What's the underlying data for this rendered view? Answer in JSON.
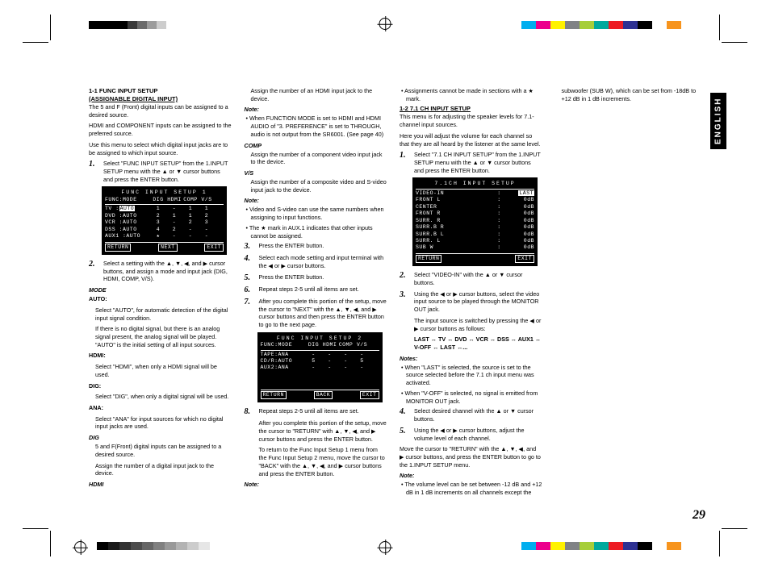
{
  "page_number": "29",
  "english_tab": "ENGLISH",
  "color_swatches": [
    "#00aeef",
    "#ec008c",
    "#fff200",
    "#808285",
    "#a6ce39",
    "#00a99d",
    "#ed1c24",
    "#2e3192",
    "#000000",
    "#ffffff",
    "#f7941d"
  ],
  "gray_swatches": [
    "#000000",
    "#1a1a1a",
    "#333333",
    "#4d4d4d",
    "#666666",
    "#808080",
    "#999999",
    "#b3b3b3",
    "#cccccc",
    "#e6e6e6",
    "#ffffff"
  ],
  "col1": {
    "title_num": "1-1  FUNC INPUT SETUP",
    "title_sub": "(ASSIGNABLE DIGITAL INPUT)",
    "intro1": "The 5 and F (Front) digital inputs can be assigned to a desired source.",
    "intro2": "HDMI and COMPONENT inputs can be assigned to the preferred source.",
    "intro3": "Use this menu to select which digital input jacks are to be assigned to which input source.",
    "step1": "Select \"FUNC INPUT SETUP\" from the 1.INPUT SETUP menu with the ▲ or ▼ cursor buttons and press the ENTER button.",
    "lcd1": {
      "title": "FUNC  INPUT  SETUP 1",
      "hdr": [
        "FUNC:MODE",
        "DIG",
        "HDMI",
        "COMP",
        "V/S"
      ],
      "rows": [
        [
          "TV   :",
          "AUTO",
          "1",
          "-",
          "1",
          "1"
        ],
        [
          "DVD  :",
          "AUTO",
          "2",
          "1",
          "1",
          "2"
        ],
        [
          "VCR  :",
          "AUTO",
          "3",
          "-",
          "2",
          "3"
        ],
        [
          "DSS  :",
          "AUTO",
          "4",
          "2",
          "-",
          "-"
        ],
        [
          "AUX1 :",
          "AUTO",
          "★",
          "-",
          "-",
          "-"
        ]
      ],
      "ftr": [
        "RETURN",
        "NEXT",
        "EXIT"
      ]
    },
    "step2": "Select a setting with the ▲, ▼, ◀, and ▶ cursor buttons, and assign a mode and input jack (DIG, HDMI, COMP, V/S).",
    "mode_h": "MODE",
    "auto_h": "AUTO:",
    "auto_t": "Select \"AUTO\", for automatic detection of the digital input signal condition.",
    "auto_t2": "If there is no digital signal, but there is an analog signal present,  the analog signal will be played. \"AUTO\" is the initial setting of all input sources.",
    "hdmi_h": "HDMI:",
    "hdmi_t": "Select \"HDMI\", when only a HDMI signal will be used.",
    "dig_h": "DIG:",
    "dig_t": "Select \"DIG\", when only a digital signal will be used.",
    "ana_h": "ANA:",
    "ana_t": "Select \"ANA\" for input sources for which no digital input jacks are used.",
    "dig2_h": "DIG",
    "dig2_t1": "5 and F(Front) digital inputs can be assigned to a desired source.",
    "dig2_t2": "Assign the number of a digital input jack to the device."
  },
  "col2": {
    "hdmi_h": "HDMI",
    "hdmi_t": "Assign the number of an HDMI input jack to the device.",
    "note1_h": "Note:",
    "note1_b": "When FUNCTION MODE is set to HDMI and HDMI AUDIO of \"3. PREFERENCE\" is set to THROUGH, audio is not output from the SR6001. (See page 40)",
    "comp_h": "COMP",
    "comp_t": "Assign the number of a component video input jack to the device.",
    "vs_h": "V/S",
    "vs_t": "Assign the number of a composite video and S-video input jack to the device.",
    "note2_h": "Note:",
    "note2_b1": "Video and S-video can use the same numbers when assigning to input functions.",
    "note2_b2": "The ★ mark in AUX.1 indicates that other inputs cannot be assigned.",
    "step3": "Press the ENTER button.",
    "step4": "Select each mode setting and input terminal with the ◀ or ▶ cursor buttons.",
    "step5": "Press the ENTER button.",
    "step6": "Repeat steps 2-5 until all items are set.",
    "step7": "After you complete this portion of the setup, move the cursor to \"NEXT\" with the ▲, ▼, ◀, and ▶ cursor buttons and then press the ENTER button to go to the next page.",
    "lcd2": {
      "title": "FUNC  INPUT  SETUP 2",
      "hdr": [
        "FUNC:MODE",
        "DIG",
        "HDMI",
        "COMP",
        "V/S"
      ],
      "rows": [
        [
          "TAPE:",
          "ANA",
          "-",
          "-",
          "-",
          "-"
        ],
        [
          "CD/R:",
          "AUTO",
          "5",
          "-",
          "-",
          "5"
        ],
        [
          "AUX2:",
          "ANA",
          "-",
          "-",
          "-",
          "-"
        ]
      ],
      "ftr": [
        "RETURN",
        "BACK",
        "EXIT"
      ]
    },
    "step8": "Repeat steps 2-5 until all items are set.",
    "step8_t2": "After you complete this portion of the setup, move the cursor to \"RETURN\" with ▲, ▼, ◀, and ▶ cursor buttons and press the ENTER button.",
    "step8_t3": "To return to the Func Input Setup 1 menu from the Func Input Setup 2 menu, move the cursor to \"BACK\" with the ▲, ▼, ◀, and ▶ cursor buttons and press the ENTER button.",
    "note3_h": "Note:",
    "note3_b": "Assignments cannot be made in sections with a ★ mark."
  },
  "col3": {
    "title": "1-2  7.1 CH INPUT SETUP",
    "intro1": "This menu is for adjusting the speaker levels for 7.1-channel input sources.",
    "intro2": "Here you will adjust the volume for each channel so that they are all heard by the listener at the same level.",
    "step1": "Select \"7.1 CH INPUT SETUP\" from the 1.INPUT SETUP menu with the ▲ or ▼ cursor buttons and press the ENTER button.",
    "lcd": {
      "title": "7.1CH  INPUT  SETUP",
      "rows": [
        [
          "VIDEO-IN",
          ":",
          "LAST"
        ],
        [
          "FRONT  L",
          ":",
          "0dB"
        ],
        [
          "CENTER",
          ":",
          "0dB"
        ],
        [
          "FRONT  R",
          ":",
          "0dB"
        ],
        [
          "SURR. R",
          ":",
          "0dB"
        ],
        [
          "SURR.B R",
          ":",
          "0dB"
        ],
        [
          "SURR.B L",
          ":",
          "0dB"
        ],
        [
          "SURR. L",
          ":",
          "0dB"
        ],
        [
          "SUB W",
          ":",
          "0dB"
        ]
      ],
      "ftr": [
        "RETURN",
        "",
        "EXIT"
      ]
    },
    "step2": "Select \"VIDEO-IN\" with the ▲ or ▼ cursor buttons.",
    "step3": "Using the ◀ or ▶ cursor buttons, select the video input source to be played through the MONITOR OUT jack.",
    "step3_t2": "The input source is switched by pressing the ◀ or ▶ cursor buttons as follows:",
    "cycle": "LAST ↔ TV ↔ DVD ↔ VCR ↔ DSS ↔ AUX1 ↔ V-OFF ↔ LAST ↔...",
    "notes_h": "Notes:",
    "notes_b1": "When \"LAST\" is selected, the source is set to the source selected before the 7.1 ch input menu was activated.",
    "notes_b2": "When \"V-OFF\" is selected, no signal is emitted from MONITOR OUT jack."
  },
  "col4": {
    "step4": "Select desired channel with the ▲ or ▼ cursor buttons.",
    "step5": "Using the ◀ or ▶ cursor buttons, adjust the volume level of each channel.",
    "ret": "Move the cursor to \"RETURN\" with the ▲, ▼, ◀, and ▶ cursor buttons, and press the ENTER button to go to the 1.INPUT SETUP menu.",
    "note_h": "Note:",
    "note_b": "The volume level can be set between -12 dB and +12 dB in 1 dB increments on all channels except the subwoofer (SUB W), which can be set from -18dB to +12 dB in 1 dB increments."
  }
}
